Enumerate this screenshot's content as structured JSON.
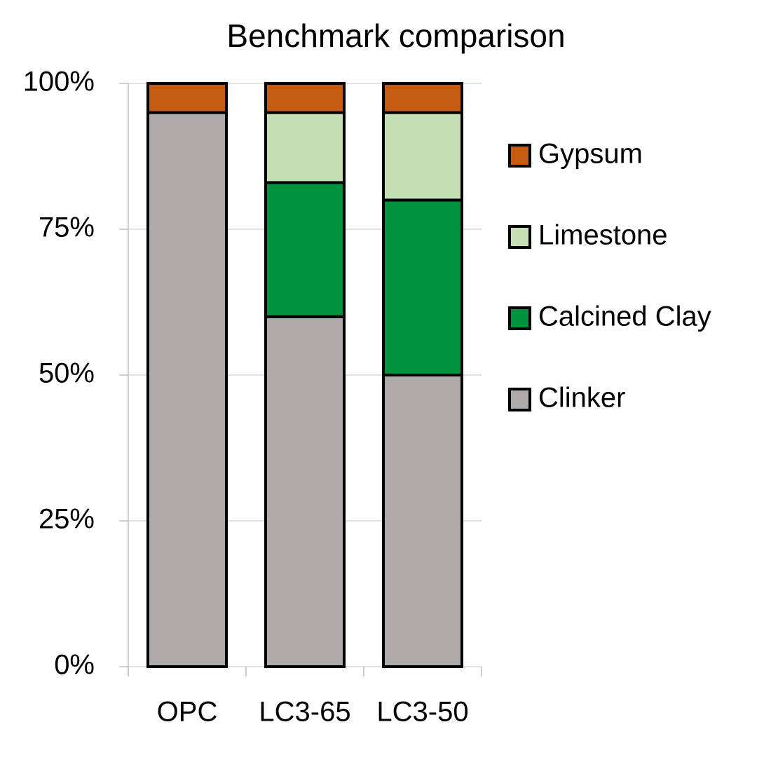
{
  "chart_data": {
    "type": "stacked_bar",
    "title": "Benchmark comparison",
    "categories": [
      "OPC",
      "LC3-65",
      "LC3-50"
    ],
    "series": [
      {
        "name": "Clinker",
        "color": "#afabab",
        "values": [
          95,
          60,
          50
        ]
      },
      {
        "name": "Calcined Clay",
        "color": "#00923f",
        "values": [
          0,
          23,
          30
        ]
      },
      {
        "name": "Limestone",
        "color": "#c5e0b4",
        "values": [
          0,
          12,
          15
        ]
      },
      {
        "name": "Gypsum",
        "color": "#c55a11",
        "values": [
          5,
          5,
          5
        ]
      }
    ],
    "ylim": [
      0,
      100
    ],
    "yticks": [
      {
        "value": 0,
        "label": "0%"
      },
      {
        "value": 25,
        "label": "25%"
      },
      {
        "value": 50,
        "label": "50%"
      },
      {
        "value": 75,
        "label": "75%"
      },
      {
        "value": 100,
        "label": "100%"
      }
    ],
    "grid": true,
    "legend": "right"
  }
}
